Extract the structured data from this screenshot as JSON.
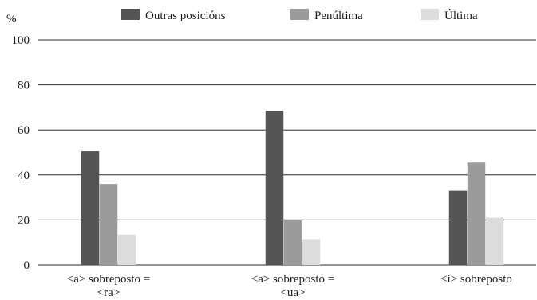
{
  "chart_data": {
    "type": "bar",
    "title": "",
    "xlabel": "",
    "ylabel": "%",
    "ylim": [
      0,
      100
    ],
    "yticks": [
      0,
      20,
      40,
      60,
      80,
      100
    ],
    "grid": true,
    "legend_position": "top",
    "categories": [
      [
        "<a> sobreposto =",
        "<ra>"
      ],
      [
        "<a> sobreposto =",
        "<ua>"
      ],
      [
        "<i> sobreposto"
      ]
    ],
    "series": [
      {
        "name": "Outras posicións",
        "color": "#555555",
        "values": [
          50.5,
          68.5,
          33.0
        ]
      },
      {
        "name": "Penúltima",
        "color": "#9b9b9b",
        "values": [
          36.0,
          20.0,
          45.5
        ]
      },
      {
        "name": "Última",
        "color": "#dcdcdc",
        "values": [
          13.5,
          11.5,
          21.0
        ]
      }
    ]
  }
}
